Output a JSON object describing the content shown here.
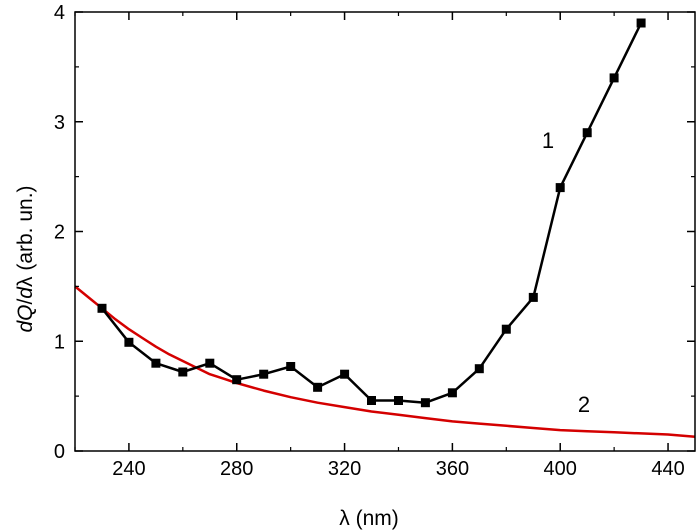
{
  "chart_data": {
    "type": "line",
    "xlabel": "λ (nm)",
    "ylabel": "dQ/dλ (arb. un.)",
    "xlim": [
      220,
      450
    ],
    "ylim": [
      0,
      4
    ],
    "xticks": [
      240,
      280,
      320,
      360,
      400,
      440
    ],
    "yticks": [
      0,
      1,
      2,
      3,
      4
    ],
    "grid": false,
    "legend": "none",
    "series": [
      {
        "label": "1",
        "color": "#000000",
        "marker": "square",
        "x": [
          230,
          240,
          250,
          260,
          270,
          280,
          290,
          300,
          310,
          320,
          330,
          340,
          350,
          360,
          370,
          380,
          390,
          400,
          410,
          420,
          430
        ],
        "y": [
          1.3,
          0.99,
          0.8,
          0.72,
          0.8,
          0.65,
          0.7,
          0.77,
          0.58,
          0.7,
          0.46,
          0.46,
          0.44,
          0.53,
          0.75,
          1.11,
          1.4,
          2.4,
          2.9,
          3.4,
          3.9
        ]
      },
      {
        "label": "2",
        "color": "#d40000",
        "marker": "none",
        "x": [
          220,
          225,
          230,
          235,
          240,
          245,
          250,
          255,
          260,
          265,
          270,
          275,
          280,
          290,
          300,
          310,
          320,
          330,
          340,
          350,
          360,
          370,
          380,
          390,
          400,
          410,
          420,
          430,
          440,
          450
        ],
        "y": [
          1.5,
          1.4,
          1.3,
          1.2,
          1.11,
          1.03,
          0.95,
          0.88,
          0.82,
          0.76,
          0.7,
          0.66,
          0.62,
          0.55,
          0.49,
          0.44,
          0.4,
          0.36,
          0.33,
          0.3,
          0.27,
          0.25,
          0.23,
          0.21,
          0.19,
          0.18,
          0.17,
          0.16,
          0.15,
          0.13
        ]
      }
    ]
  }
}
